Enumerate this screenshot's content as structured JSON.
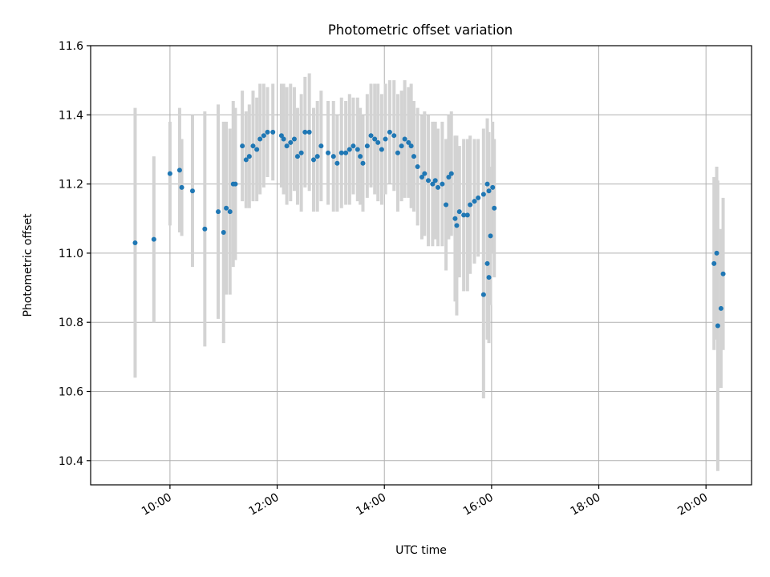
{
  "chart_data": {
    "type": "scatter",
    "title": "Photometric offset variation",
    "xlabel": "UTC time",
    "ylabel": "Photometric offset",
    "x_unit": "hours",
    "xlim": [
      8.52,
      20.85
    ],
    "ylim": [
      10.33,
      11.6
    ],
    "grid": true,
    "x_ticks": [
      {
        "value": 10,
        "label": "10:00"
      },
      {
        "value": 12,
        "label": "12:00"
      },
      {
        "value": 14,
        "label": "14:00"
      },
      {
        "value": 16,
        "label": "16:00"
      },
      {
        "value": 18,
        "label": "18:00"
      },
      {
        "value": 20,
        "label": "20:00"
      }
    ],
    "y_ticks": [
      {
        "value": 10.4,
        "label": "10.4"
      },
      {
        "value": 10.6,
        "label": "10.6"
      },
      {
        "value": 10.8,
        "label": "10.8"
      },
      {
        "value": 11.0,
        "label": "11.0"
      },
      {
        "value": 11.2,
        "label": "11.2"
      },
      {
        "value": 11.4,
        "label": "11.4"
      },
      {
        "value": 11.6,
        "label": "11.6"
      }
    ],
    "colors": {
      "points": "#1f77b4",
      "error_bars": "#d3d3d3",
      "grid": "#b0b0b0"
    },
    "points": [
      [
        9.35,
        11.03,
        0.39
      ],
      [
        9.7,
        11.04,
        0.24
      ],
      [
        10.0,
        11.23,
        0.15
      ],
      [
        10.18,
        11.24,
        0.18
      ],
      [
        10.22,
        11.19,
        0.14
      ],
      [
        10.42,
        11.18,
        0.22
      ],
      [
        10.65,
        11.07,
        0.34
      ],
      [
        10.9,
        11.12,
        0.31
      ],
      [
        11.0,
        11.06,
        0.32
      ],
      [
        11.05,
        11.13,
        0.25
      ],
      [
        11.12,
        11.12,
        0.24
      ],
      [
        11.18,
        11.2,
        0.24
      ],
      [
        11.22,
        11.2,
        0.22
      ],
      [
        11.35,
        11.31,
        0.16
      ],
      [
        11.42,
        11.27,
        0.14
      ],
      [
        11.48,
        11.28,
        0.15
      ],
      [
        11.55,
        11.31,
        0.16
      ],
      [
        11.62,
        11.3,
        0.15
      ],
      [
        11.68,
        11.33,
        0.16
      ],
      [
        11.75,
        11.34,
        0.15
      ],
      [
        11.82,
        11.35,
        0.13
      ],
      [
        11.92,
        11.35,
        0.14
      ],
      [
        12.08,
        11.34,
        0.15
      ],
      [
        12.12,
        11.33,
        0.16
      ],
      [
        12.18,
        11.31,
        0.17
      ],
      [
        12.25,
        11.32,
        0.17
      ],
      [
        12.32,
        11.33,
        0.15
      ],
      [
        12.38,
        11.28,
        0.14
      ],
      [
        12.45,
        11.29,
        0.17
      ],
      [
        12.52,
        11.35,
        0.16
      ],
      [
        12.6,
        11.35,
        0.17
      ],
      [
        12.68,
        11.27,
        0.15
      ],
      [
        12.75,
        11.28,
        0.16
      ],
      [
        12.82,
        11.31,
        0.16
      ],
      [
        12.95,
        11.29,
        0.15
      ],
      [
        13.05,
        11.28,
        0.16
      ],
      [
        13.12,
        11.26,
        0.14
      ],
      [
        13.2,
        11.29,
        0.16
      ],
      [
        13.28,
        11.29,
        0.15
      ],
      [
        13.35,
        11.3,
        0.16
      ],
      [
        13.42,
        11.31,
        0.14
      ],
      [
        13.5,
        11.3,
        0.15
      ],
      [
        13.55,
        11.28,
        0.14
      ],
      [
        13.6,
        11.26,
        0.14
      ],
      [
        13.68,
        11.31,
        0.15
      ],
      [
        13.75,
        11.34,
        0.15
      ],
      [
        13.82,
        11.33,
        0.16
      ],
      [
        13.88,
        11.32,
        0.17
      ],
      [
        13.95,
        11.3,
        0.16
      ],
      [
        14.02,
        11.33,
        0.16
      ],
      [
        14.1,
        11.35,
        0.15
      ],
      [
        14.18,
        11.34,
        0.16
      ],
      [
        14.25,
        11.29,
        0.17
      ],
      [
        14.32,
        11.31,
        0.16
      ],
      [
        14.38,
        11.33,
        0.17
      ],
      [
        14.45,
        11.32,
        0.16
      ],
      [
        14.5,
        11.31,
        0.18
      ],
      [
        14.55,
        11.28,
        0.16
      ],
      [
        14.62,
        11.25,
        0.17
      ],
      [
        14.7,
        11.22,
        0.18
      ],
      [
        14.75,
        11.23,
        0.18
      ],
      [
        14.82,
        11.21,
        0.19
      ],
      [
        14.9,
        11.2,
        0.18
      ],
      [
        14.95,
        11.21,
        0.17
      ],
      [
        15.0,
        11.19,
        0.17
      ],
      [
        15.08,
        11.2,
        0.18
      ],
      [
        15.15,
        11.14,
        0.19
      ],
      [
        15.2,
        11.22,
        0.18
      ],
      [
        15.25,
        11.23,
        0.18
      ],
      [
        15.32,
        11.1,
        0.24
      ],
      [
        15.35,
        11.08,
        0.26
      ],
      [
        15.4,
        11.12,
        0.19
      ],
      [
        15.48,
        11.11,
        0.22
      ],
      [
        15.55,
        11.11,
        0.22
      ],
      [
        15.6,
        11.14,
        0.2
      ],
      [
        15.68,
        11.15,
        0.18
      ],
      [
        15.75,
        11.16,
        0.17
      ],
      [
        15.85,
        11.17,
        0.19
      ],
      [
        15.92,
        11.2,
        0.19
      ],
      [
        15.95,
        11.18,
        0.17
      ],
      [
        16.02,
        11.19,
        0.19
      ],
      [
        16.05,
        11.13,
        0.2
      ],
      [
        15.85,
        10.88,
        0.3
      ],
      [
        15.92,
        10.97,
        0.22
      ],
      [
        15.95,
        10.93,
        0.19
      ],
      [
        15.98,
        11.05,
        0.2
      ],
      [
        20.15,
        10.97,
        0.25
      ],
      [
        20.2,
        11.0,
        0.25
      ],
      [
        20.22,
        10.79,
        0.42
      ],
      [
        20.28,
        10.84,
        0.23
      ],
      [
        20.32,
        10.94,
        0.22
      ]
    ]
  }
}
